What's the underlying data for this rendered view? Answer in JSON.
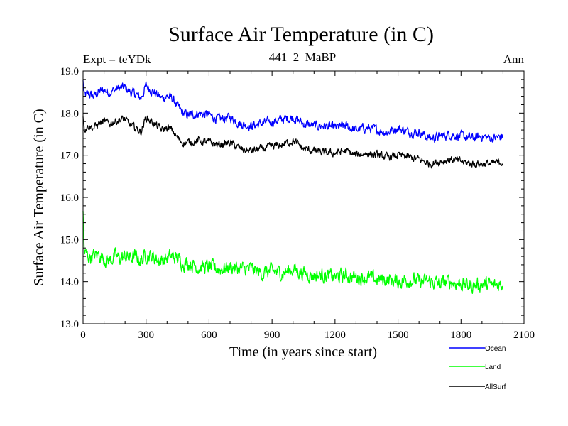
{
  "chart_data": {
    "type": "line",
    "title": "Surface Air Temperature (in C)",
    "subtitle_left": "Expt = teYDk",
    "subtitle_center": "441_2_MaBP",
    "subtitle_right": "Ann",
    "xlabel": "Time (in years since start)",
    "ylabel": "Surface Air Temperature (in C)",
    "xlim": [
      0,
      2100
    ],
    "ylim": [
      13.0,
      19.0
    ],
    "xticks": [
      0,
      300,
      600,
      900,
      1200,
      1500,
      1800,
      2100
    ],
    "xtick_labels": [
      "0",
      "300",
      "600",
      "900",
      "1200",
      "1500",
      "1800",
      "2100"
    ],
    "yticks": [
      13.0,
      14.0,
      15.0,
      16.0,
      17.0,
      18.0,
      19.0
    ],
    "ytick_labels": [
      "13.0",
      "14.0",
      "15.0",
      "16.0",
      "17.0",
      "18.0",
      "19.0"
    ],
    "legend_position": "bottom-right, below plot",
    "x": [
      0,
      25,
      50,
      75,
      100,
      125,
      150,
      175,
      200,
      225,
      250,
      275,
      300,
      325,
      350,
      375,
      400,
      425,
      450,
      475,
      500,
      550,
      600,
      650,
      700,
      750,
      800,
      850,
      900,
      950,
      1000,
      1050,
      1100,
      1150,
      1200,
      1250,
      1300,
      1350,
      1400,
      1450,
      1500,
      1550,
      1600,
      1650,
      1700,
      1750,
      1800,
      1850,
      1900,
      1950,
      2000
    ],
    "series": [
      {
        "name": "Ocean",
        "color": "#0000ff",
        "values": [
          18.4,
          18.45,
          18.4,
          18.5,
          18.55,
          18.5,
          18.55,
          18.6,
          18.6,
          18.5,
          18.45,
          18.35,
          18.65,
          18.55,
          18.45,
          18.35,
          18.4,
          18.35,
          18.15,
          18.0,
          17.95,
          18.0,
          17.95,
          17.85,
          17.9,
          17.75,
          17.7,
          17.75,
          17.8,
          17.85,
          17.9,
          17.75,
          17.7,
          17.7,
          17.65,
          17.7,
          17.6,
          17.65,
          17.6,
          17.55,
          17.65,
          17.55,
          17.55,
          17.4,
          17.45,
          17.5,
          17.45,
          17.4,
          17.45,
          17.4,
          17.45
        ]
      },
      {
        "name": "Land",
        "color": "#00ff00",
        "values": [
          14.7,
          14.6,
          14.6,
          14.65,
          14.55,
          14.5,
          14.6,
          14.55,
          14.6,
          14.55,
          14.6,
          14.5,
          14.65,
          14.6,
          14.55,
          14.5,
          14.55,
          14.6,
          14.55,
          14.45,
          14.45,
          14.35,
          14.35,
          14.3,
          14.35,
          14.3,
          14.3,
          14.2,
          14.25,
          14.2,
          14.3,
          14.2,
          14.15,
          14.15,
          14.1,
          14.15,
          14.1,
          14.1,
          14.05,
          14.05,
          14.0,
          14.05,
          14.0,
          14.0,
          13.95,
          14.0,
          13.95,
          13.9,
          13.95,
          13.9,
          13.95
        ]
      },
      {
        "name": "AllSurf",
        "color": "#000000",
        "values": [
          17.6,
          17.7,
          17.65,
          17.75,
          17.8,
          17.75,
          17.8,
          17.85,
          17.85,
          17.7,
          17.65,
          17.55,
          17.9,
          17.8,
          17.7,
          17.6,
          17.65,
          17.6,
          17.4,
          17.3,
          17.3,
          17.35,
          17.3,
          17.25,
          17.3,
          17.15,
          17.1,
          17.15,
          17.2,
          17.25,
          17.35,
          17.15,
          17.1,
          17.05,
          17.05,
          17.1,
          17.0,
          17.05,
          17.0,
          16.95,
          17.0,
          16.95,
          16.9,
          16.8,
          16.85,
          16.9,
          16.85,
          16.8,
          16.8,
          16.8,
          16.85
        ]
      }
    ]
  }
}
